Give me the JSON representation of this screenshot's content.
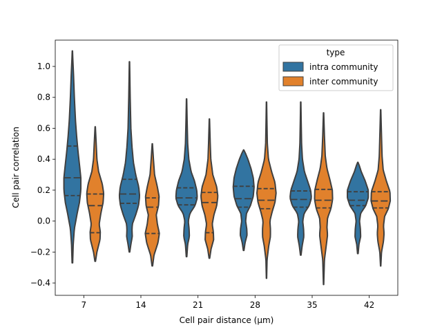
{
  "chart_data": {
    "type": "violin",
    "xlabel": "Cell pair distance (µm)",
    "ylabel": "Cell pair correlation",
    "categories": [
      "7",
      "14",
      "21",
      "28",
      "35",
      "42"
    ],
    "ylim": [
      -0.48,
      1.17
    ],
    "yticks": [
      -0.4,
      -0.2,
      0.0,
      0.2,
      0.4,
      0.6,
      0.8,
      1.0
    ],
    "ytick_labels": [
      "−0.4",
      "−0.2",
      "0.0",
      "0.2",
      "0.4",
      "0.6",
      "0.8",
      "1.0"
    ],
    "grid": false,
    "legend": {
      "title": "type",
      "placement": "top-right",
      "entries": [
        "intra community",
        "inter community"
      ]
    },
    "series": [
      {
        "name": "intra community",
        "color": "#3274a1",
        "violins": [
          {
            "min": -0.27,
            "max": 1.1,
            "q1": 0.165,
            "median": 0.28,
            "q3": 0.485,
            "profile": [
              [
                -0.27,
                0.01
              ],
              [
                -0.15,
                0.03
              ],
              [
                -0.05,
                0.07
              ],
              [
                0.05,
                0.17
              ],
              [
                0.12,
                0.25
              ],
              [
                0.2,
                0.3
              ],
              [
                0.28,
                0.3
              ],
              [
                0.35,
                0.26
              ],
              [
                0.45,
                0.2
              ],
              [
                0.55,
                0.15
              ],
              [
                0.65,
                0.11
              ],
              [
                0.8,
                0.07
              ],
              [
                0.95,
                0.04
              ],
              [
                1.05,
                0.015
              ],
              [
                1.1,
                0.005
              ]
            ]
          },
          {
            "min": -0.2,
            "max": 1.03,
            "q1": 0.115,
            "median": 0.175,
            "q3": 0.27,
            "profile": [
              [
                -0.2,
                0.01
              ],
              [
                -0.15,
                0.05
              ],
              [
                -0.1,
                0.1
              ],
              [
                -0.06,
                0.09
              ],
              [
                -0.02,
                0.1
              ],
              [
                0.04,
                0.22
              ],
              [
                0.1,
                0.32
              ],
              [
                0.16,
                0.36
              ],
              [
                0.22,
                0.33
              ],
              [
                0.3,
                0.22
              ],
              [
                0.38,
                0.14
              ],
              [
                0.48,
                0.09
              ],
              [
                0.6,
                0.05
              ],
              [
                0.8,
                0.025
              ],
              [
                1.03,
                0.005
              ]
            ]
          },
          {
            "min": -0.23,
            "max": 0.79,
            "q1": 0.105,
            "median": 0.15,
            "q3": 0.215,
            "profile": [
              [
                -0.23,
                0.01
              ],
              [
                -0.15,
                0.04
              ],
              [
                -0.1,
                0.1
              ],
              [
                -0.05,
                0.09
              ],
              [
                0.0,
                0.06
              ],
              [
                0.05,
                0.12
              ],
              [
                0.1,
                0.3
              ],
              [
                0.15,
                0.38
              ],
              [
                0.2,
                0.36
              ],
              [
                0.26,
                0.28
              ],
              [
                0.32,
                0.16
              ],
              [
                0.4,
                0.08
              ],
              [
                0.5,
                0.04
              ],
              [
                0.65,
                0.02
              ],
              [
                0.79,
                0.005
              ]
            ]
          },
          {
            "min": -0.19,
            "max": 0.46,
            "q1": 0.09,
            "median": 0.145,
            "q3": 0.225,
            "profile": [
              [
                -0.19,
                0.01
              ],
              [
                -0.14,
                0.05
              ],
              [
                -0.09,
                0.12
              ],
              [
                -0.05,
                0.11
              ],
              [
                0.0,
                0.07
              ],
              [
                0.05,
                0.1
              ],
              [
                0.1,
                0.24
              ],
              [
                0.16,
                0.34
              ],
              [
                0.22,
                0.37
              ],
              [
                0.28,
                0.34
              ],
              [
                0.34,
                0.26
              ],
              [
                0.4,
                0.15
              ],
              [
                0.44,
                0.06
              ],
              [
                0.46,
                0.005
              ]
            ]
          },
          {
            "min": -0.22,
            "max": 0.77,
            "q1": 0.09,
            "median": 0.14,
            "q3": 0.195,
            "profile": [
              [
                -0.22,
                0.01
              ],
              [
                -0.16,
                0.05
              ],
              [
                -0.1,
                0.11
              ],
              [
                -0.05,
                0.1
              ],
              [
                0.0,
                0.07
              ],
              [
                0.05,
                0.12
              ],
              [
                0.1,
                0.3
              ],
              [
                0.15,
                0.38
              ],
              [
                0.2,
                0.35
              ],
              [
                0.26,
                0.24
              ],
              [
                0.32,
                0.13
              ],
              [
                0.4,
                0.06
              ],
              [
                0.5,
                0.03
              ],
              [
                0.65,
                0.015
              ],
              [
                0.77,
                0.005
              ]
            ]
          },
          {
            "min": -0.21,
            "max": 0.38,
            "q1": 0.1,
            "median": 0.135,
            "q3": 0.19,
            "profile": [
              [
                -0.21,
                0.01
              ],
              [
                -0.15,
                0.04
              ],
              [
                -0.1,
                0.1
              ],
              [
                -0.05,
                0.09
              ],
              [
                0.0,
                0.06
              ],
              [
                0.05,
                0.1
              ],
              [
                0.1,
                0.28
              ],
              [
                0.15,
                0.37
              ],
              [
                0.2,
                0.37
              ],
              [
                0.26,
                0.26
              ],
              [
                0.32,
                0.12
              ],
              [
                0.36,
                0.05
              ],
              [
                0.38,
                0.005
              ]
            ]
          }
        ]
      },
      {
        "name": "inter community",
        "color": "#e1812c",
        "violins": [
          {
            "min": -0.26,
            "max": 0.61,
            "q1": -0.075,
            "median": 0.1,
            "q3": 0.175,
            "profile": [
              [
                -0.26,
                0.01
              ],
              [
                -0.2,
                0.06
              ],
              [
                -0.12,
                0.17
              ],
              [
                -0.07,
                0.18
              ],
              [
                -0.02,
                0.14
              ],
              [
                0.05,
                0.2
              ],
              [
                0.12,
                0.28
              ],
              [
                0.18,
                0.3
              ],
              [
                0.24,
                0.25
              ],
              [
                0.32,
                0.12
              ],
              [
                0.4,
                0.06
              ],
              [
                0.5,
                0.035
              ],
              [
                0.61,
                0.005
              ]
            ]
          },
          {
            "min": -0.29,
            "max": 0.5,
            "q1": -0.08,
            "median": 0.09,
            "q3": 0.15,
            "profile": [
              [
                -0.29,
                0.01
              ],
              [
                -0.22,
                0.06
              ],
              [
                -0.14,
                0.2
              ],
              [
                -0.08,
                0.25
              ],
              [
                -0.02,
                0.18
              ],
              [
                0.04,
                0.14
              ],
              [
                0.1,
                0.22
              ],
              [
                0.16,
                0.24
              ],
              [
                0.22,
                0.18
              ],
              [
                0.3,
                0.08
              ],
              [
                0.4,
                0.04
              ],
              [
                0.5,
                0.005
              ]
            ]
          },
          {
            "min": -0.24,
            "max": 0.66,
            "q1": -0.075,
            "median": 0.12,
            "q3": 0.185,
            "profile": [
              [
                -0.24,
                0.01
              ],
              [
                -0.18,
                0.06
              ],
              [
                -0.12,
                0.15
              ],
              [
                -0.07,
                0.14
              ],
              [
                -0.02,
                0.1
              ],
              [
                0.04,
                0.16
              ],
              [
                0.1,
                0.26
              ],
              [
                0.16,
                0.3
              ],
              [
                0.22,
                0.26
              ],
              [
                0.3,
                0.12
              ],
              [
                0.4,
                0.05
              ],
              [
                0.5,
                0.03
              ],
              [
                0.66,
                0.005
              ]
            ]
          },
          {
            "min": -0.37,
            "max": 0.77,
            "q1": 0.08,
            "median": 0.135,
            "q3": 0.21,
            "profile": [
              [
                -0.37,
                0.005
              ],
              [
                -0.25,
                0.02
              ],
              [
                -0.16,
                0.08
              ],
              [
                -0.1,
                0.14
              ],
              [
                -0.05,
                0.14
              ],
              [
                0.0,
                0.12
              ],
              [
                0.06,
                0.2
              ],
              [
                0.12,
                0.3
              ],
              [
                0.18,
                0.34
              ],
              [
                0.25,
                0.3
              ],
              [
                0.32,
                0.18
              ],
              [
                0.4,
                0.07
              ],
              [
                0.5,
                0.03
              ],
              [
                0.65,
                0.015
              ],
              [
                0.77,
                0.005
              ]
            ]
          },
          {
            "min": -0.41,
            "max": 0.7,
            "q1": 0.085,
            "median": 0.135,
            "q3": 0.205,
            "profile": [
              [
                -0.41,
                0.005
              ],
              [
                -0.25,
                0.03
              ],
              [
                -0.15,
                0.1
              ],
              [
                -0.09,
                0.14
              ],
              [
                -0.04,
                0.12
              ],
              [
                0.02,
                0.14
              ],
              [
                0.08,
                0.26
              ],
              [
                0.14,
                0.32
              ],
              [
                0.2,
                0.31
              ],
              [
                0.27,
                0.22
              ],
              [
                0.34,
                0.12
              ],
              [
                0.42,
                0.06
              ],
              [
                0.55,
                0.03
              ],
              [
                0.7,
                0.005
              ]
            ]
          },
          {
            "min": -0.29,
            "max": 0.72,
            "q1": 0.085,
            "median": 0.13,
            "q3": 0.19,
            "profile": [
              [
                -0.29,
                0.005
              ],
              [
                -0.2,
                0.03
              ],
              [
                -0.13,
                0.1
              ],
              [
                -0.08,
                0.12
              ],
              [
                -0.03,
                0.1
              ],
              [
                0.03,
                0.14
              ],
              [
                0.08,
                0.27
              ],
              [
                0.13,
                0.34
              ],
              [
                0.19,
                0.33
              ],
              [
                0.26,
                0.2
              ],
              [
                0.33,
                0.09
              ],
              [
                0.42,
                0.05
              ],
              [
                0.55,
                0.03
              ],
              [
                0.72,
                0.005
              ]
            ]
          }
        ]
      }
    ]
  }
}
